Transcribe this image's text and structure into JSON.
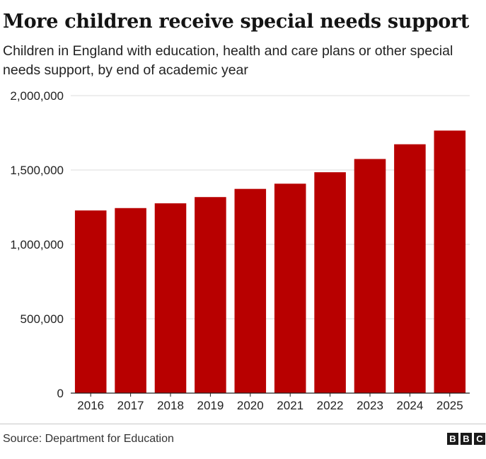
{
  "title": "More children receive special needs support",
  "subtitle": "Children in England with education, health and care plans or other special needs support, by end of academic year",
  "source": "Source: Department for Education",
  "logo": [
    "B",
    "B",
    "C"
  ],
  "colors": {
    "bar": "#b80000",
    "grid": "#dcdcdc",
    "axis": "#222222",
    "text": "#222222"
  },
  "chart_data": {
    "type": "bar",
    "categories": [
      "2016",
      "2017",
      "2018",
      "2019",
      "2020",
      "2021",
      "2022",
      "2023",
      "2024",
      "2025"
    ],
    "values": [
      1228000,
      1244000,
      1276000,
      1318000,
      1373000,
      1408000,
      1485000,
      1574000,
      1673000,
      1765000
    ],
    "ylim": [
      0,
      2000000
    ],
    "yticks": [
      0,
      500000,
      1000000,
      1500000,
      2000000
    ],
    "ytick_labels": [
      "0",
      "500,000",
      "1,000,000",
      "1,500,000",
      "2,000,000"
    ],
    "grid": true
  }
}
